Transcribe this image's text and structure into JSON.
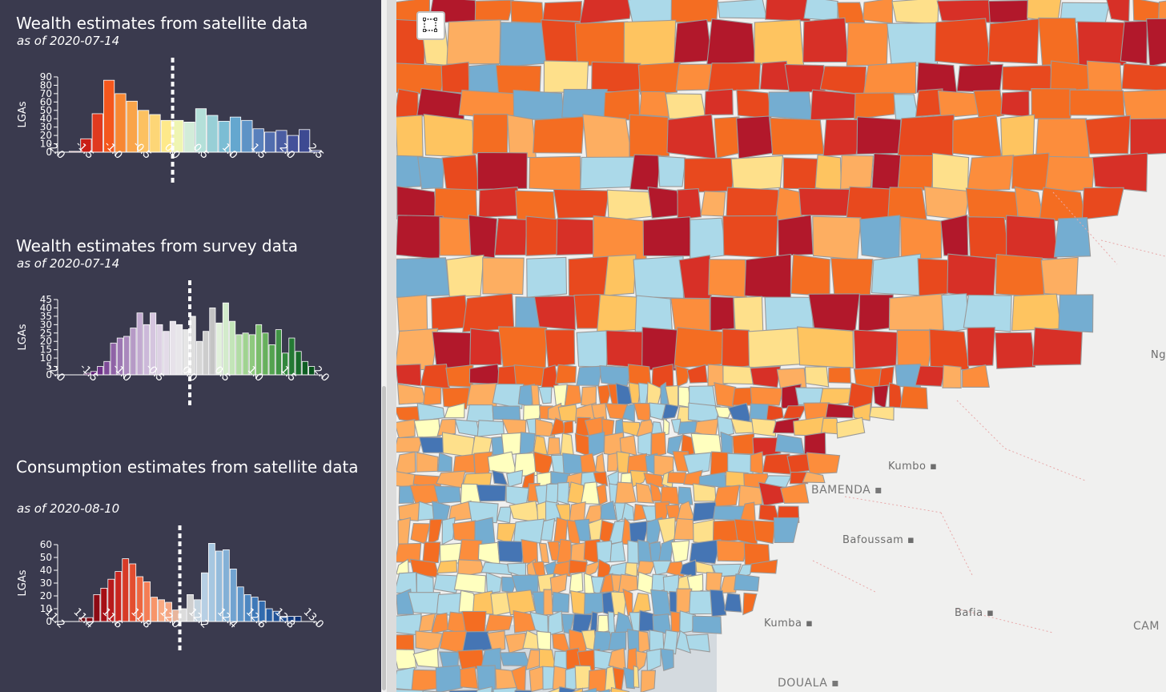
{
  "sidebar": {
    "panels": [
      {
        "title": "Wealth estimates from satellite data",
        "date": "as of 2020-07-14",
        "y_axis_label": "LGAs",
        "chart_data": {
          "type": "bar",
          "xlim": [
            -2.0,
            2.5
          ],
          "ylim": [
            0,
            90
          ],
          "bin_width": 0.2,
          "bin_start": -1.8,
          "x_ticks": [
            "-2.0",
            "-1.5",
            "-1.0",
            "-0.5",
            "0.0",
            "0.5",
            "1.0",
            "1.5",
            "2.0",
            "2.5"
          ],
          "y_ticks": [
            "0",
            "10",
            "20",
            "30",
            "40",
            "50",
            "60",
            "70",
            "80",
            "90"
          ],
          "values": [
            1,
            16,
            46,
            86,
            70,
            61,
            50,
            45,
            38,
            38,
            36,
            52,
            44,
            37,
            42,
            38,
            28,
            24,
            26,
            20,
            27,
            2
          ],
          "colors": [
            "#b2182b",
            "#c91e16",
            "#e03a1f",
            "#f4571d",
            "#f78733",
            "#f9a449",
            "#fcc161",
            "#fdd677",
            "#fee98a",
            "#eff5b2",
            "#d2ecd9",
            "#b4e0d9",
            "#98cfd6",
            "#7bbdd4",
            "#64a7cf",
            "#5e93c6",
            "#5880bc",
            "#516dae",
            "#4a5da2",
            "#43519a",
            "#3d4a92",
            "#36408a"
          ],
          "marker": 0.0
        }
      },
      {
        "title": "Wealth estimates from survey data",
        "date": "as of 2020-07-14",
        "y_axis_label": "LGAs",
        "chart_data": {
          "type": "bar",
          "xlim": [
            -2.0,
            2.0
          ],
          "ylim": [
            0,
            45
          ],
          "bin_width": 0.1,
          "bin_start": -1.6,
          "x_ticks": [
            "-2.0",
            "-1.5",
            "-1.0",
            "-0.5",
            "0.0",
            "0.5",
            "1.0",
            "1.5",
            "2.0"
          ],
          "y_ticks": [
            "0",
            "5",
            "10",
            "15",
            "20",
            "25",
            "30",
            "35",
            "40",
            "45"
          ],
          "values": [
            1,
            2,
            5,
            8,
            19,
            22,
            23,
            28,
            37,
            30,
            37,
            30,
            26,
            32,
            30,
            27,
            35,
            20,
            26,
            40,
            31,
            43,
            32,
            24,
            25,
            24,
            30,
            25,
            18,
            27,
            13,
            22,
            14,
            8,
            5
          ],
          "colors": [
            "#40004b",
            "#5a1b72",
            "#6e3289",
            "#7e4b98",
            "#8f63a6",
            "#9d77b3",
            "#aa88bd",
            "#b69ac6",
            "#c2aad0",
            "#ccb9d9",
            "#d5c5df",
            "#ddd1e4",
            "#e3dbe8",
            "#e7e2ea",
            "#e8e6ea",
            "#e6e6e6",
            "#dedede",
            "#d6d6d6",
            "#cdcdcd",
            "#c4c4c4",
            "#e2f1dc",
            "#d3ebcb",
            "#c3e5b8",
            "#b2dca5",
            "#a0d391",
            "#8ec97e",
            "#7bbd6c",
            "#67b05d",
            "#53a24f",
            "#419445",
            "#32873d",
            "#247934",
            "#186b2b",
            "#0f5e23",
            "#08521c"
          ],
          "marker": 0.0
        }
      },
      {
        "title": "Consumption estimates from satellite data",
        "date": "as of 2020-08-10",
        "y_axis_label": "LGAs",
        "chart_data": {
          "type": "bar",
          "xlim": [
            11.2,
            13.0
          ],
          "ylim": [
            0,
            60
          ],
          "bin_width": 0.05,
          "bin_start": 11.35,
          "x_ticks": [
            "11.2",
            "11.4",
            "11.6",
            "11.8",
            "12.0",
            "12.2",
            "12.4",
            "12.6",
            "12.8",
            "13.0"
          ],
          "y_ticks": [
            "0",
            "10",
            "20",
            "30",
            "40",
            "50",
            "60"
          ],
          "values": [
            3,
            3,
            21,
            26,
            33,
            39,
            49,
            45,
            35,
            31,
            19,
            17,
            15,
            9,
            10,
            21,
            17,
            38,
            61,
            55,
            56,
            41,
            27,
            21,
            19,
            16,
            10,
            8,
            4,
            4,
            4
          ],
          "colors": [
            "#67000d",
            "#7a0010",
            "#8c0a14",
            "#a50f15",
            "#b71a1c",
            "#c8251f",
            "#d73a27",
            "#e34e30",
            "#ec6640",
            "#f47d55",
            "#f7956a",
            "#f9aa82",
            "#f5a683",
            "#e8b59c",
            "#dcdcdc",
            "#d0d0d0",
            "#c4d4e0",
            "#b7cfe4",
            "#a6c7e1",
            "#95bcdc",
            "#83b0d6",
            "#71a3d0",
            "#5e95c9",
            "#4d87c1",
            "#3f79b8",
            "#326bae",
            "#275ea3",
            "#1f5298",
            "#17468c",
            "#113b80",
            "#0b3075"
          ],
          "marker": 12.05
        }
      }
    ]
  },
  "map": {
    "labels": [
      {
        "text": "Kumbo",
        "left": 614,
        "top": 575
      },
      {
        "text": "BAMENDA",
        "left": 518,
        "top": 604,
        "big": true
      },
      {
        "text": "Bafoussam",
        "left": 557,
        "top": 667
      },
      {
        "text": "Kumba",
        "left": 459,
        "top": 771
      },
      {
        "text": "Bafia",
        "left": 697,
        "top": 758
      },
      {
        "text": "DOUALA",
        "left": 476,
        "top": 845,
        "big": true
      },
      {
        "text": "CAM",
        "left": 920,
        "top": 774,
        "big": true
      },
      {
        "text": "Ng",
        "left": 942,
        "top": 436
      }
    ],
    "palette": [
      "#b2182b",
      "#d73027",
      "#e8491e",
      "#f46d22",
      "#fc8d3c",
      "#fdae61",
      "#fec460",
      "#fee08b",
      "#ffffbf",
      "#abd9e9",
      "#74add1",
      "#4575b4"
    ]
  },
  "controls": {
    "select_tool": "select-box-icon"
  }
}
